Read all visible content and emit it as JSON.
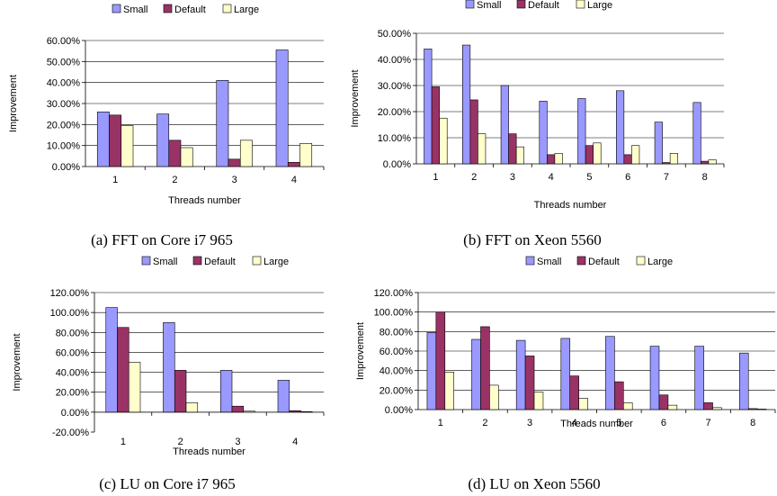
{
  "series_colors": {
    "Small": "#9999ff",
    "Default": "#993366",
    "Large": "#ffffcc"
  },
  "chart_data": [
    {
      "type": "bar",
      "caption": "(a) FFT on Core i7 965",
      "xlabel": "Threads number",
      "ylabel": "Improvement",
      "legend": [
        "Small",
        "Default",
        "Large"
      ],
      "legend_position": "top",
      "categories": [
        "1",
        "2",
        "3",
        "4"
      ],
      "series": [
        {
          "name": "Small",
          "values": [
            0.26,
            0.25,
            0.41,
            0.555
          ]
        },
        {
          "name": "Default",
          "values": [
            0.245,
            0.125,
            0.035,
            0.02
          ]
        },
        {
          "name": "Large",
          "values": [
            0.195,
            0.09,
            0.125,
            0.11
          ]
        }
      ],
      "ylim": [
        0,
        0.6
      ],
      "yticks": [
        0,
        0.1,
        0.2,
        0.3,
        0.4,
        0.5,
        0.6
      ],
      "ytick_labels": [
        "0.00%",
        "10.00%",
        "20.00%",
        "30.00%",
        "40.00%",
        "50.00%",
        "60.00%"
      ],
      "grid": true
    },
    {
      "type": "bar",
      "caption": "(b) FFT on Xeon 5560",
      "xlabel": "Threads number",
      "ylabel": "Improvement",
      "legend": [
        "Small",
        "Default",
        "Large"
      ],
      "legend_position": "top",
      "categories": [
        "1",
        "2",
        "3",
        "4",
        "5",
        "6",
        "7",
        "8"
      ],
      "series": [
        {
          "name": "Small",
          "values": [
            0.44,
            0.455,
            0.3,
            0.24,
            0.25,
            0.28,
            0.16,
            0.235
          ]
        },
        {
          "name": "Default",
          "values": [
            0.295,
            0.245,
            0.115,
            0.035,
            0.07,
            0.035,
            0.005,
            0.01
          ]
        },
        {
          "name": "Large",
          "values": [
            0.175,
            0.115,
            0.065,
            0.04,
            0.08,
            0.07,
            0.04,
            0.015
          ]
        }
      ],
      "ylim": [
        0,
        0.5
      ],
      "yticks": [
        0,
        0.1,
        0.2,
        0.3,
        0.4,
        0.5
      ],
      "ytick_labels": [
        "0.00%",
        "10.00%",
        "20.00%",
        "30.00%",
        "40.00%",
        "50.00%"
      ],
      "grid": true
    },
    {
      "type": "bar",
      "caption": "(c) LU on Core i7 965",
      "xlabel": "Threads number",
      "ylabel": "Improvement",
      "legend": [
        "Small",
        "Default",
        "Large"
      ],
      "legend_position": "top",
      "categories": [
        "1",
        "2",
        "3",
        "4"
      ],
      "series": [
        {
          "name": "Small",
          "values": [
            1.05,
            0.9,
            0.42,
            0.32
          ]
        },
        {
          "name": "Default",
          "values": [
            0.85,
            0.42,
            0.06,
            0.015
          ]
        },
        {
          "name": "Large",
          "values": [
            0.5,
            0.095,
            0.01,
            0.005
          ]
        }
      ],
      "ylim": [
        -0.2,
        1.2
      ],
      "yticks": [
        -0.2,
        0,
        0.2,
        0.4,
        0.6,
        0.8,
        1.0,
        1.2
      ],
      "ytick_labels": [
        "-20.00%",
        "0.00%",
        "20.00%",
        "40.00%",
        "60.00%",
        "80.00%",
        "100.00%",
        "120.00%"
      ],
      "grid": true
    },
    {
      "type": "bar",
      "caption": "(d) LU on Xeon 5560",
      "xlabel": "Threads number",
      "ylabel": "Improvement",
      "legend": [
        "Small",
        "Default",
        "Large"
      ],
      "legend_position": "top",
      "categories": [
        "1",
        "2",
        "3",
        "4",
        "5",
        "6",
        "7",
        "8"
      ],
      "series": [
        {
          "name": "Small",
          "values": [
            0.79,
            0.72,
            0.71,
            0.73,
            0.75,
            0.65,
            0.65,
            0.58
          ]
        },
        {
          "name": "Default",
          "values": [
            1.0,
            0.85,
            0.55,
            0.345,
            0.285,
            0.15,
            0.07,
            0.01
          ]
        },
        {
          "name": "Large",
          "values": [
            0.385,
            0.25,
            0.18,
            0.115,
            0.07,
            0.045,
            0.02,
            0.005
          ]
        }
      ],
      "ylim": [
        0,
        1.2
      ],
      "yticks": [
        0,
        0.2,
        0.4,
        0.6,
        0.8,
        1.0,
        1.2
      ],
      "ytick_labels": [
        "0.00%",
        "20.00%",
        "40.00%",
        "60.00%",
        "80.00%",
        "100.00%",
        "120.00%"
      ],
      "grid": true
    }
  ]
}
